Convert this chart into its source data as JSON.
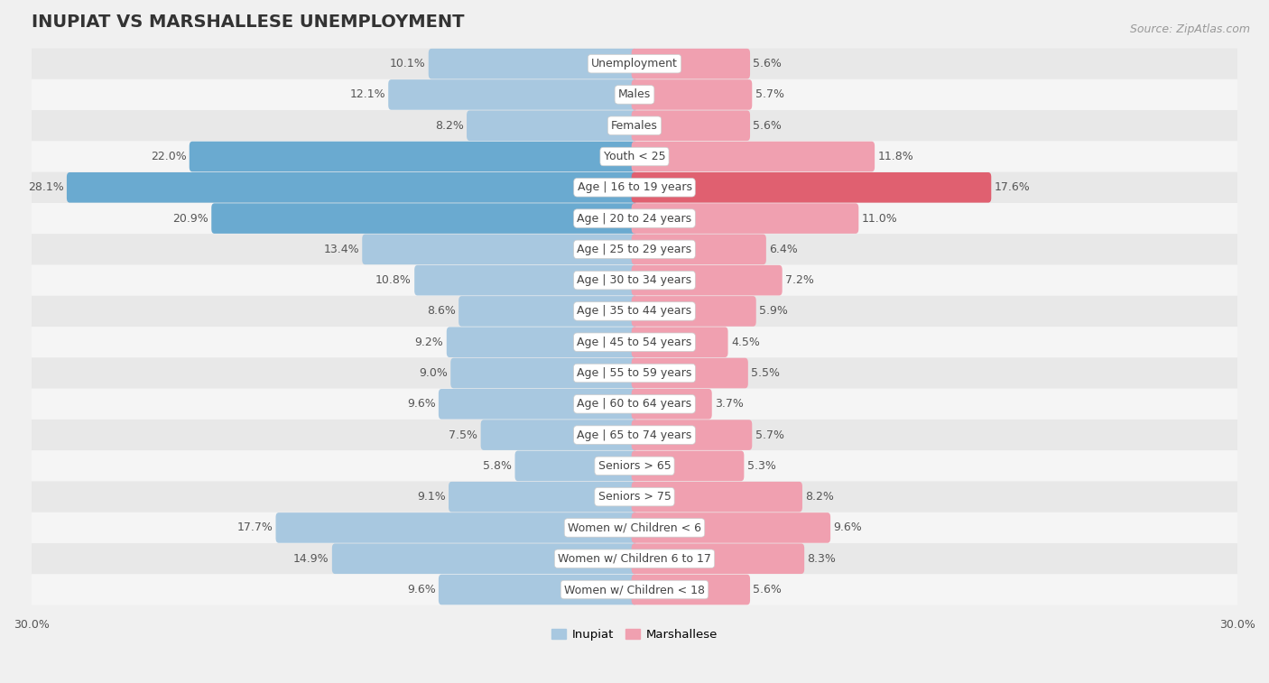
{
  "title": "INUPIAT VS MARSHALLESE UNEMPLOYMENT",
  "source": "Source: ZipAtlas.com",
  "categories": [
    "Unemployment",
    "Males",
    "Females",
    "Youth < 25",
    "Age | 16 to 19 years",
    "Age | 20 to 24 years",
    "Age | 25 to 29 years",
    "Age | 30 to 34 years",
    "Age | 35 to 44 years",
    "Age | 45 to 54 years",
    "Age | 55 to 59 years",
    "Age | 60 to 64 years",
    "Age | 65 to 74 years",
    "Seniors > 65",
    "Seniors > 75",
    "Women w/ Children < 6",
    "Women w/ Children 6 to 17",
    "Women w/ Children < 18"
  ],
  "inupiat": [
    10.1,
    12.1,
    8.2,
    22.0,
    28.1,
    20.9,
    13.4,
    10.8,
    8.6,
    9.2,
    9.0,
    9.6,
    7.5,
    5.8,
    9.1,
    17.7,
    14.9,
    9.6
  ],
  "marshallese": [
    5.6,
    5.7,
    5.6,
    11.8,
    17.6,
    11.0,
    6.4,
    7.2,
    5.9,
    4.5,
    5.5,
    3.7,
    5.7,
    5.3,
    8.2,
    9.6,
    8.3,
    5.6
  ],
  "inupiat_color_normal": "#a8c8e0",
  "inupiat_color_highlight": "#6aaad0",
  "marshallese_color_normal": "#f0a0b0",
  "marshallese_color_highlight": "#e06070",
  "bg_color": "#f0f0f0",
  "row_color_odd": "#e8e8e8",
  "row_color_even": "#f5f5f5",
  "highlight_inupiat": [
    false,
    false,
    false,
    true,
    true,
    true,
    false,
    false,
    false,
    false,
    false,
    false,
    false,
    false,
    false,
    false,
    false,
    false
  ],
  "highlight_marshallese": [
    false,
    false,
    false,
    false,
    true,
    false,
    false,
    false,
    false,
    false,
    false,
    false,
    false,
    false,
    false,
    false,
    false,
    false
  ],
  "axis_limit": 30.0,
  "bar_height": 0.68,
  "label_fontsize": 9.0,
  "category_fontsize": 9.0,
  "title_fontsize": 14,
  "source_fontsize": 9,
  "value_color": "#555555",
  "value_color_white": "#ffffff"
}
